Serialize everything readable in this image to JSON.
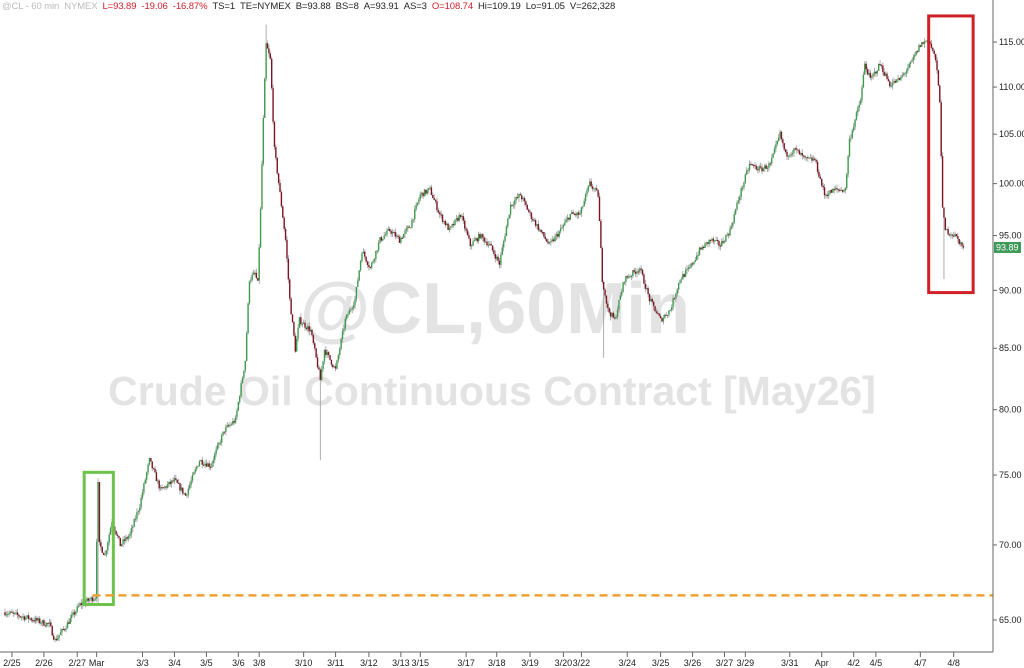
{
  "header": {
    "symbol": "@CL - 60 min",
    "exchange": "NYMEX",
    "last": "L=93.89",
    "change": "-19.06",
    "change_pct": "-16.87%",
    "ts": "TS=1",
    "te": "TE=NYMEX",
    "bid": "B=93.88",
    "bid_size": "BS=8",
    "ask": "A=93.91",
    "ask_size": "AS=3",
    "open": "O=108.74",
    "high": "Hi=109.19",
    "low": "Lo=91.05",
    "volume": "V=262,328"
  },
  "watermark": {
    "line1": "@CL,60Min",
    "line2": "Crude Oil Continuous Contract [May26]"
  },
  "last_price_label": "93.89",
  "colors": {
    "up": "#3d9b4c",
    "down": "#7c1424",
    "wick": "#9a9a9a",
    "green_box": "#6cc24a",
    "red_box": "#d01f26",
    "dashed_line": "#f0a030",
    "last_price_bg": "#3f9a5a"
  },
  "chart_data": {
    "type": "candlestick",
    "title": "",
    "xlabel": "",
    "ylabel": "",
    "y_scale": "log",
    "ylim": [
      62.5,
      118
    ],
    "x_unit": "hourly bar index",
    "xlim": [
      0,
      712
    ],
    "grid": false,
    "y_ticks": [
      "115.00",
      "110.00",
      "105.00",
      "100.00",
      "95.00",
      "90.00",
      "85.00",
      "80.00",
      "75.00",
      "70.00",
      "65.00"
    ],
    "x_ticks": [
      {
        "label": "2/25",
        "bar": 5
      },
      {
        "label": "2/26",
        "bar": 28
      },
      {
        "label": "2/27",
        "bar": 52
      },
      {
        "label": "Mar",
        "bar": 66
      },
      {
        "label": "3/3",
        "bar": 99
      },
      {
        "label": "3/4",
        "bar": 122
      },
      {
        "label": "3/5",
        "bar": 145
      },
      {
        "label": "3/6",
        "bar": 168
      },
      {
        "label": "3/8",
        "bar": 183
      },
      {
        "label": "3/10",
        "bar": 215
      },
      {
        "label": "3/11",
        "bar": 238
      },
      {
        "label": "3/12",
        "bar": 262
      },
      {
        "label": "3/13",
        "bar": 285
      },
      {
        "label": "3/15",
        "bar": 299
      },
      {
        "label": "3/17",
        "bar": 332
      },
      {
        "label": "3/18",
        "bar": 354
      },
      {
        "label": "3/19",
        "bar": 378
      },
      {
        "label": "3/20",
        "bar": 402
      },
      {
        "label": "3/22",
        "bar": 415
      },
      {
        "label": "3/24",
        "bar": 448
      },
      {
        "label": "3/25",
        "bar": 472
      },
      {
        "label": "3/26",
        "bar": 495
      },
      {
        "label": "3/27",
        "bar": 518
      },
      {
        "label": "3/29",
        "bar": 533
      },
      {
        "label": "3/31",
        "bar": 565
      },
      {
        "label": "Apr",
        "bar": 588
      },
      {
        "label": "4/2",
        "bar": 611
      },
      {
        "label": "4/5",
        "bar": 627
      },
      {
        "label": "4/7",
        "bar": 659
      },
      {
        "label": "4/8",
        "bar": 683
      }
    ],
    "close_path": [
      [
        0,
        65.5
      ],
      [
        18,
        65.1
      ],
      [
        32,
        64.7
      ],
      [
        36,
        63.7
      ],
      [
        43,
        64.5
      ],
      [
        54,
        66.0
      ],
      [
        65,
        66.5
      ],
      [
        67,
        74.3
      ],
      [
        68,
        70.0
      ],
      [
        72,
        69.3
      ],
      [
        77,
        71.7
      ],
      [
        83,
        70.0
      ],
      [
        90,
        70.7
      ],
      [
        97,
        72.8
      ],
      [
        104,
        76.1
      ],
      [
        112,
        73.9
      ],
      [
        122,
        74.6
      ],
      [
        130,
        73.5
      ],
      [
        140,
        76.1
      ],
      [
        148,
        75.7
      ],
      [
        158,
        78.4
      ],
      [
        166,
        79.2
      ],
      [
        173,
        84.0
      ],
      [
        176,
        91.0
      ],
      [
        180,
        91.5
      ],
      [
        182,
        90.6
      ],
      [
        184,
        97.4
      ],
      [
        186,
        106.5
      ],
      [
        188,
        114.7
      ],
      [
        191,
        113.0
      ],
      [
        194,
        103.4
      ],
      [
        202,
        94.6
      ],
      [
        205,
        89.2
      ],
      [
        209,
        84.9
      ],
      [
        212,
        87.4
      ],
      [
        220,
        86.5
      ],
      [
        227,
        82.4
      ],
      [
        230,
        84.9
      ],
      [
        238,
        83.2
      ],
      [
        245,
        87.4
      ],
      [
        252,
        89.2
      ],
      [
        257,
        93.6
      ],
      [
        263,
        92.0
      ],
      [
        270,
        94.6
      ],
      [
        277,
        95.5
      ],
      [
        284,
        94.6
      ],
      [
        292,
        96.0
      ],
      [
        299,
        98.9
      ],
      [
        306,
        99.4
      ],
      [
        313,
        97.0
      ],
      [
        320,
        95.5
      ],
      [
        328,
        97.0
      ],
      [
        335,
        94.1
      ],
      [
        342,
        95.0
      ],
      [
        349,
        94.1
      ],
      [
        356,
        92.4
      ],
      [
        364,
        97.9
      ],
      [
        371,
        98.9
      ],
      [
        378,
        97.0
      ],
      [
        385,
        95.5
      ],
      [
        392,
        94.1
      ],
      [
        400,
        95.5
      ],
      [
        407,
        97.0
      ],
      [
        414,
        97.0
      ],
      [
        421,
        100.0
      ],
      [
        427,
        98.9
      ],
      [
        430,
        91.0
      ],
      [
        434,
        88.3
      ],
      [
        439,
        87.4
      ],
      [
        446,
        91.0
      ],
      [
        457,
        92.0
      ],
      [
        464,
        89.2
      ],
      [
        472,
        87.4
      ],
      [
        479,
        88.3
      ],
      [
        486,
        91.0
      ],
      [
        493,
        92.0
      ],
      [
        500,
        93.6
      ],
      [
        508,
        94.6
      ],
      [
        515,
        94.1
      ],
      [
        522,
        95.5
      ],
      [
        529,
        98.9
      ],
      [
        536,
        101.9
      ],
      [
        544,
        101.4
      ],
      [
        551,
        101.9
      ],
      [
        558,
        105.0
      ],
      [
        562,
        102.9
      ],
      [
        569,
        103.4
      ],
      [
        576,
        102.4
      ],
      [
        583,
        102.4
      ],
      [
        590,
        98.9
      ],
      [
        598,
        99.4
      ],
      [
        605,
        99.4
      ],
      [
        608,
        104.4
      ],
      [
        616,
        108.6
      ],
      [
        619,
        112.5
      ],
      [
        623,
        110.8
      ],
      [
        630,
        112.5
      ],
      [
        637,
        110.3
      ],
      [
        644,
        110.8
      ],
      [
        652,
        112.5
      ],
      [
        659,
        114.7
      ],
      [
        665,
        115.3
      ],
      [
        670,
        113.0
      ],
      [
        673,
        108.6
      ],
      [
        675,
        97.4
      ],
      [
        677,
        95.5
      ],
      [
        684,
        95.0
      ],
      [
        690,
        93.89
      ]
    ],
    "spike_lows": [
      [
        67,
        66.0
      ],
      [
        227,
        76.1
      ],
      [
        431,
        84.2
      ],
      [
        676,
        91.0
      ]
    ],
    "spike_highs": [
      [
        188,
        117.0
      ],
      [
        665,
        116.8
      ]
    ],
    "annotations": [
      {
        "type": "box",
        "color": "green",
        "bars": [
          57,
          78
        ],
        "price": [
          66.0,
          75.2
        ]
      },
      {
        "type": "box",
        "color": "red",
        "bars": [
          665,
          697
        ],
        "price": [
          89.8,
          118
        ]
      },
      {
        "type": "dashed_hline",
        "color": "orange",
        "price": 66.6,
        "from_bar": 63
      }
    ],
    "last_price": 93.89
  }
}
